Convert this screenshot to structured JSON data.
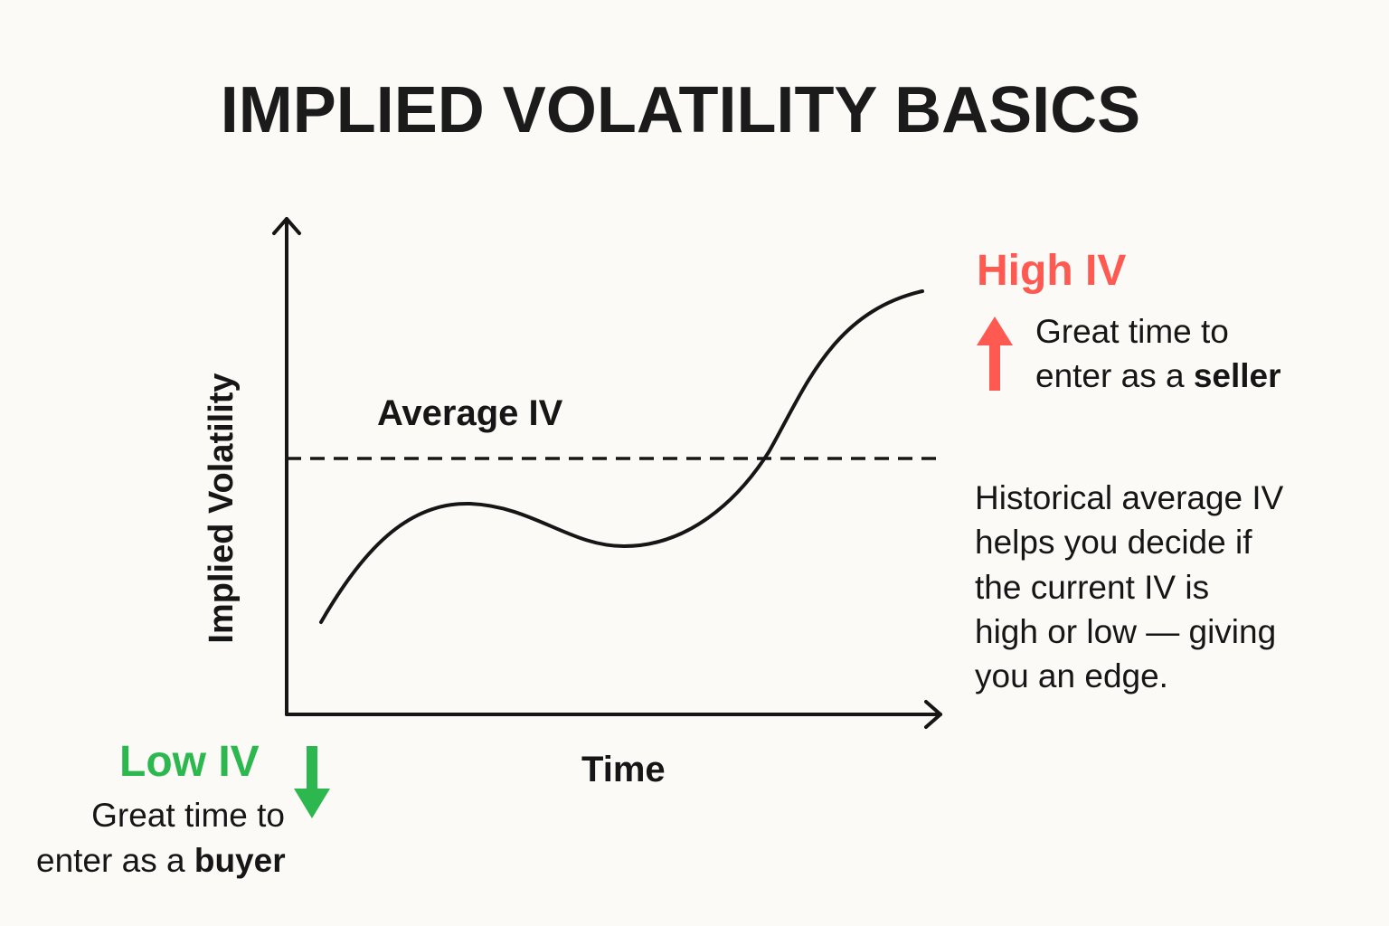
{
  "title": "IMPLIED VOLATILITY BASICS",
  "axes": {
    "y_label": "Implied Volatility",
    "x_label": "Time"
  },
  "average_label": "Average IV",
  "high": {
    "heading": "High IV",
    "line1": "Great time to",
    "line2_prefix": "enter as a ",
    "line2_bold": "seller",
    "color": "#ff5a52",
    "icon": "arrow-up-icon"
  },
  "low": {
    "heading": "Low IV",
    "line1": "Great time to",
    "line2_prefix": "enter as a ",
    "line2_bold": "buyer",
    "color": "#2db84f",
    "icon": "arrow-down-icon"
  },
  "note": {
    "lines": [
      "Historical average IV",
      "helps you decide if",
      "the current IV is",
      "high or low — giving",
      "you an edge."
    ]
  }
}
